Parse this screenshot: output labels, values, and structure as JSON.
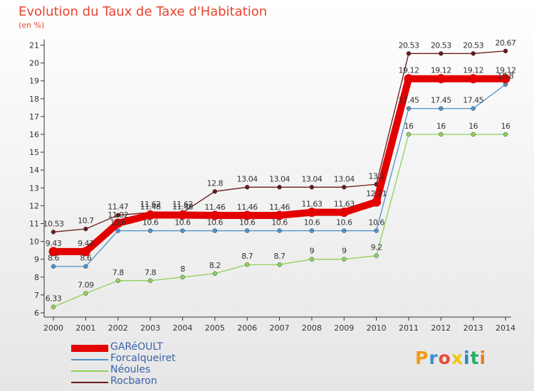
{
  "title": "Evolution du Taux de Taxe d'Habitation",
  "subtitle": "(en %)",
  "logo": {
    "text": "Proxiti",
    "colors": [
      "#f39c12",
      "#3a8fd0",
      "#e74c3c",
      "#f1c40f",
      "#2e86c1",
      "#27ae60",
      "#e67e22"
    ]
  },
  "chart_data": {
    "type": "line",
    "title": "Evolution du Taux de Taxe d'Habitation",
    "ylabel": "(en %)",
    "x": [
      "2000",
      "2001",
      "2002",
      "2003",
      "2004",
      "2005",
      "2006",
      "2007",
      "2008",
      "2009",
      "2010",
      "2011",
      "2012",
      "2013",
      "2014"
    ],
    "ylim": [
      6,
      21
    ],
    "yticks": [
      6,
      7,
      8,
      9,
      10,
      11,
      12,
      13,
      14,
      15,
      16,
      17,
      18,
      19,
      20,
      21
    ],
    "grid": false,
    "legend_position": "bottom-left",
    "series": [
      {
        "name": "GARéOULT",
        "color": "#e30000",
        "values": [
          9.43,
          9.43,
          11.02,
          11.48,
          11.48,
          11.46,
          11.46,
          11.46,
          11.63,
          11.63,
          12.21,
          19.12,
          19.12,
          19.12,
          19.12
        ],
        "labels": [
          "9.43",
          "9.43",
          "11.02",
          "11.48",
          "11.48",
          "11.46",
          "11.46",
          "11.46",
          "11.63",
          "11.63",
          "12.21",
          "19.12",
          "19.12",
          "19.12",
          "19.12"
        ]
      },
      {
        "name": "Forcalqueiret",
        "color": "#4e92c9",
        "values": [
          8.6,
          8.6,
          10.6,
          10.6,
          10.6,
          10.6,
          10.6,
          10.6,
          10.6,
          10.6,
          10.6,
          17.45,
          17.45,
          17.45,
          18.8
        ],
        "labels": [
          "8.6",
          "8.6",
          "10.6",
          "10.6",
          "10.6",
          "10.6",
          "10.6",
          "10.6",
          "10.6",
          "10.6",
          "10.6",
          "17.45",
          "17.45",
          "17.45",
          "18.8"
        ]
      },
      {
        "name": "Néoules",
        "color": "#8fd15a",
        "values": [
          6.33,
          7.09,
          7.8,
          7.8,
          8,
          8.2,
          8.7,
          8.7,
          9,
          9,
          9.2,
          16,
          16,
          16,
          16
        ],
        "labels": [
          "6.33",
          "7.09",
          "7.8",
          "7.8",
          "8",
          "8.2",
          "8.7",
          "8.7",
          "9",
          "9",
          "9.2",
          "16",
          "16",
          "16",
          "16"
        ]
      },
      {
        "name": "Rocbaron",
        "color": "#6b1a1a",
        "values": [
          10.53,
          10.7,
          11.47,
          11.62,
          11.62,
          12.8,
          13.04,
          13.04,
          13.04,
          13.04,
          13.2,
          20.53,
          20.53,
          20.53,
          20.67
        ],
        "labels": [
          "10.53",
          "10.7",
          "11.47",
          "11.62",
          "11.62",
          "12.8",
          "13.04",
          "13.04",
          "13.04",
          "13.04",
          "13.2",
          "20.53",
          "20.53",
          "20.53",
          "20.67"
        ]
      }
    ]
  }
}
